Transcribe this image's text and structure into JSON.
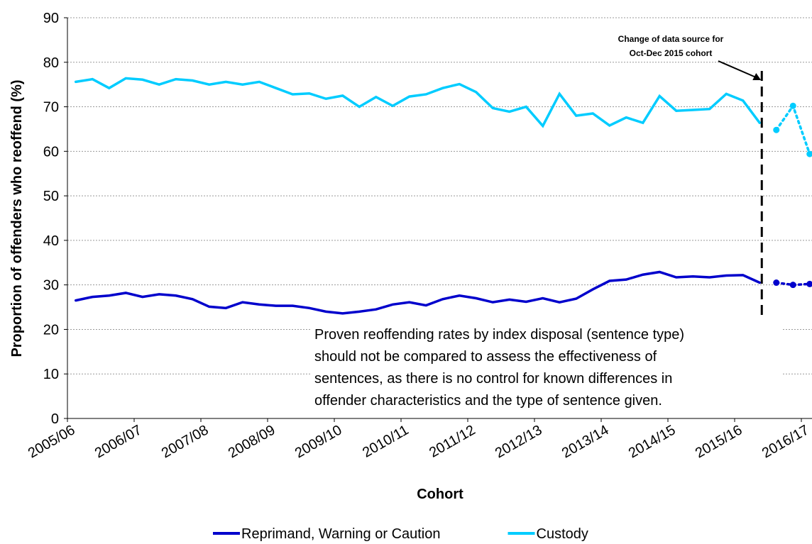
{
  "chart_data": {
    "type": "line",
    "y_label": "Proportion of offenders who reoffend (%)",
    "x_label": "Cohort",
    "categories": [
      "2005/06",
      null,
      null,
      null,
      "2006/07",
      null,
      null,
      null,
      "2007/08",
      null,
      null,
      null,
      "2008/09",
      null,
      null,
      null,
      "2009/10",
      null,
      null,
      null,
      "2010/11",
      null,
      null,
      null,
      "2011/12",
      null,
      null,
      null,
      "2012/13",
      null,
      null,
      null,
      "2013/14",
      null,
      null,
      null,
      "2014/15",
      null,
      null,
      null,
      "2015/16",
      null,
      null,
      null,
      "2016/17"
    ],
    "series": [
      {
        "name": "Reprimand, Warning or Caution",
        "color": "#0000cc",
        "values": [
          26.5,
          27.3,
          27.6,
          28.2,
          27.3,
          27.9,
          27.6,
          26.8,
          25.1,
          24.8,
          26.1,
          25.6,
          25.3,
          25.3,
          24.8,
          24.0,
          23.6,
          24.0,
          24.5,
          25.6,
          26.1,
          25.4,
          26.8,
          27.6,
          27.0,
          26.1,
          26.7,
          26.2,
          27.0,
          26.1,
          26.9,
          29.0,
          30.9,
          31.2,
          32.3,
          32.9,
          31.7,
          31.9,
          31.7,
          32.1,
          32.2,
          30.5,
          null,
          null,
          null
        ],
        "new_source_values": [
          null,
          null,
          null,
          null,
          null,
          null,
          null,
          null,
          null,
          null,
          null,
          null,
          null,
          null,
          null,
          null,
          null,
          null,
          null,
          null,
          null,
          null,
          null,
          null,
          null,
          null,
          null,
          null,
          null,
          null,
          null,
          null,
          null,
          null,
          null,
          null,
          null,
          null,
          null,
          null,
          null,
          null,
          30.5,
          30.0,
          30.2
        ]
      },
      {
        "name": "Custody",
        "color": "#00ccff",
        "values": [
          75.6,
          76.2,
          74.2,
          76.4,
          76.1,
          75.0,
          76.2,
          75.9,
          75.0,
          75.6,
          75.0,
          75.6,
          74.2,
          72.8,
          73.0,
          71.8,
          72.5,
          70.0,
          72.2,
          70.2,
          72.3,
          72.8,
          74.2,
          75.1,
          73.3,
          69.7,
          68.9,
          70.0,
          65.7,
          72.9,
          68.0,
          68.5,
          65.8,
          67.6,
          66.4,
          72.4,
          69.1,
          69.3,
          69.5,
          72.9,
          71.4,
          66.4,
          null,
          null,
          null
        ],
        "new_source_values": [
          null,
          null,
          null,
          null,
          null,
          null,
          null,
          null,
          null,
          null,
          null,
          null,
          null,
          null,
          null,
          null,
          null,
          null,
          null,
          null,
          null,
          null,
          null,
          null,
          null,
          null,
          null,
          null,
          null,
          null,
          null,
          null,
          null,
          null,
          null,
          null,
          null,
          null,
          null,
          null,
          null,
          null,
          64.8,
          70.2,
          59.4
        ]
      }
    ],
    "ylim": [
      0,
      90
    ],
    "yticks": [
      0,
      10,
      20,
      30,
      40,
      50,
      60,
      70,
      80,
      90
    ],
    "grid": true,
    "annotation": [
      "Change of data source for",
      "Oct-Dec 2015 cohort"
    ],
    "note": [
      "Proven reoffending rates by index disposal (sentence type)",
      "should not be compared to assess the effectiveness of",
      "sentences, as there is no control for known differences in",
      "offender characteristics and the type of sentence given."
    ]
  }
}
